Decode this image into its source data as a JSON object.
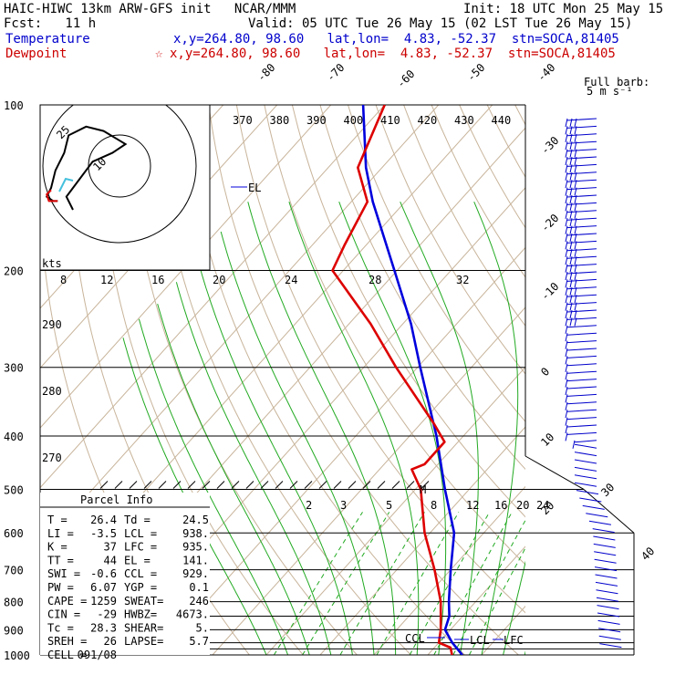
{
  "header": {
    "title": "HAIC-HIWC 13km ARW-GFS init   NCAR/MMM",
    "init": "Init: 18 UTC Mon 25 May 15",
    "fcst": "Fcst:   11 h",
    "valid": "Valid: 05 UTC Tue 26 May 15 (02 LST Tue 26 May 15)",
    "temperature_label": "Temperature",
    "temperature_info": "x,y=264.80, 98.60   lat,lon=  4.83, -52.37  stn=SOCA,81405",
    "dewpoint_label": "Dewpoint",
    "dewpoint_info": "x,y=264.80, 98.60   lat,lon=  4.83, -52.37  stn=SOCA,81405",
    "dewpoint_marker": "☆"
  },
  "colors": {
    "temperature": "#0000dd",
    "dewpoint": "#dd0000",
    "isotherm": "#c8b49a",
    "mixing_ratio": "#22aa22",
    "isobar": "#000000"
  },
  "chart_data": {
    "type": "line",
    "title": "Skew-T log-P sounding",
    "ylabel": "Pressure (hPa)",
    "y_scale": "log",
    "ylim": [
      1000,
      100
    ],
    "pressure_labels": [
      "100",
      "200",
      "300",
      "400",
      "500",
      "600",
      "700",
      "800",
      "900",
      "1000"
    ],
    "isotherm_labels": [
      "-80",
      "-70",
      "-60",
      "-50",
      "-40",
      "-30",
      "-20",
      "-10",
      "0",
      "10",
      "20",
      "30",
      "40"
    ],
    "theta_labels": [
      "370",
      "380",
      "390",
      "400",
      "410",
      "420",
      "430",
      "440"
    ],
    "theta_side_labels": [
      "290",
      "280",
      "270"
    ],
    "mixing_ratio_labels_200": [
      "8",
      "12",
      "16",
      "20",
      "24",
      "28",
      "32"
    ],
    "mixing_ratio_labels_550": [
      "2",
      "3",
      "5",
      "8",
      "12",
      "16",
      "20",
      "24"
    ],
    "series": [
      {
        "name": "Temperature",
        "points": [
          {
            "p": 1000,
            "t": 26.4
          },
          {
            "p": 950,
            "t": 22.5
          },
          {
            "p": 900,
            "t": 19.0
          },
          {
            "p": 850,
            "t": 17.5
          },
          {
            "p": 800,
            "t": 15.0
          },
          {
            "p": 700,
            "t": 10.0
          },
          {
            "p": 600,
            "t": 4.5
          },
          {
            "p": 500,
            "t": -4.5
          },
          {
            "p": 400,
            "t": -15.0
          },
          {
            "p": 300,
            "t": -29.5
          },
          {
            "p": 250,
            "t": -38.5
          },
          {
            "p": 200,
            "t": -50.5
          },
          {
            "p": 150,
            "t": -66.0
          },
          {
            "p": 130,
            "t": -73.0
          },
          {
            "p": 100,
            "t": -84.0
          }
        ]
      },
      {
        "name": "Dewpoint",
        "points": [
          {
            "p": 1000,
            "t": 24.5
          },
          {
            "p": 970,
            "t": 23.0
          },
          {
            "p": 950,
            "t": 20.0
          },
          {
            "p": 900,
            "t": 18.2
          },
          {
            "p": 800,
            "t": 13.5
          },
          {
            "p": 700,
            "t": 7.0
          },
          {
            "p": 600,
            "t": -1.0
          },
          {
            "p": 500,
            "t": -9.0
          },
          {
            "p": 460,
            "t": -14.0
          },
          {
            "p": 450,
            "t": -12.5
          },
          {
            "p": 410,
            "t": -12.5
          },
          {
            "p": 380,
            "t": -17.5
          },
          {
            "p": 300,
            "t": -34.0
          },
          {
            "p": 250,
            "t": -46.0
          },
          {
            "p": 200,
            "t": -62.0
          },
          {
            "p": 180,
            "t": -64.0
          },
          {
            "p": 150,
            "t": -67.0
          },
          {
            "p": 130,
            "t": -74.5
          },
          {
            "p": 100,
            "t": -80.0
          }
        ]
      }
    ],
    "annotations": {
      "el_label": "EL",
      "el_pressure": 141,
      "ccl_label": "CCL",
      "lcl_label": "LCL",
      "lfc_label": "LFC",
      "m_label": "M"
    },
    "hodograph": {
      "units_label": "kts",
      "ring_labels": [
        "25",
        "10"
      ],
      "trace": [
        [
          0,
          0
        ],
        [
          -3,
          6
        ],
        [
          3,
          14
        ],
        [
          9,
          22
        ],
        [
          18,
          26
        ],
        [
          24,
          30
        ],
        [
          14,
          36
        ],
        [
          6,
          38
        ],
        [
          -2,
          34
        ],
        [
          -4,
          26
        ],
        [
          -8,
          18
        ],
        [
          -10,
          10
        ],
        [
          -12,
          6
        ],
        [
          -9,
          4
        ],
        [
          -7,
          4
        ]
      ],
      "low_trace": [
        [
          -7,
          4
        ],
        [
          -11,
          4
        ],
        [
          -12,
          7
        ],
        [
          -10,
          9
        ]
      ]
    },
    "wind_barbs": {
      "label_line1": "Full barb:",
      "label_line2": "5 m s⁻¹"
    }
  },
  "parcel_info": {
    "title": "Parcel Info",
    "rows": [
      {
        "a": "T  =",
        "av": "26.4",
        "b": "Td =",
        "bv": "24.5"
      },
      {
        "a": "LI =",
        "av": "-3.5",
        "b": "LCL =",
        "bv": "938."
      },
      {
        "a": "K  =",
        "av": "37",
        "b": "LFC =",
        "bv": "935."
      },
      {
        "a": "TT =",
        "av": "44",
        "b": "EL  =",
        "bv": "141."
      },
      {
        "a": "SWI =",
        "av": "-0.6",
        "b": "CCL =",
        "bv": "929."
      },
      {
        "a": "PW =",
        "av": "6.07",
        "b": "YGP =",
        "bv": "0.1"
      },
      {
        "a": "CAPE =",
        "av": "1259",
        "b": "SWEAT=",
        "bv": "246"
      },
      {
        "a": "CIN =",
        "av": "-29",
        "b": "HWBZ=",
        "bv": "4673."
      },
      {
        "a": "Tc =",
        "av": "28.3",
        "b": "SHEAR=",
        "bv": "5."
      },
      {
        "a": "SREH =",
        "av": "26",
        "b": "LAPSE=",
        "bv": "5.7"
      },
      {
        "a": "CELL =",
        "av": "091/08",
        "b": "",
        "bv": ""
      }
    ]
  }
}
